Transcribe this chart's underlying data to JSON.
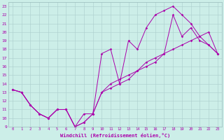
{
  "xlabel": "Windchill (Refroidissement éolien,°C)",
  "background_color": "#cceee8",
  "grid_color": "#aacccc",
  "line_color": "#aa00aa",
  "xlim": [
    -0.5,
    23.5
  ],
  "ylim": [
    9,
    23.5
  ],
  "xticks": [
    0,
    1,
    2,
    3,
    4,
    5,
    6,
    7,
    8,
    9,
    10,
    11,
    12,
    13,
    14,
    15,
    16,
    17,
    18,
    19,
    20,
    21,
    22,
    23
  ],
  "yticks": [
    9,
    10,
    11,
    12,
    13,
    14,
    15,
    16,
    17,
    18,
    19,
    20,
    21,
    22,
    23
  ],
  "line1_x": [
    0,
    1,
    2,
    3,
    4,
    5,
    6,
    7,
    8,
    9,
    10,
    11,
    12,
    13,
    14,
    15,
    16,
    17,
    18,
    19,
    20,
    21,
    22,
    23
  ],
  "line1_y": [
    13.3,
    13.0,
    11.5,
    10.5,
    10.0,
    11.0,
    11.0,
    9.0,
    9.5,
    10.5,
    17.5,
    18.0,
    14.0,
    19.0,
    18.0,
    20.5,
    22.0,
    22.5,
    23.0,
    22.0,
    21.0,
    19.5,
    18.5,
    17.5
  ],
  "line2_x": [
    0,
    1,
    2,
    3,
    4,
    5,
    6,
    7,
    8,
    9,
    10,
    11,
    12,
    13,
    14,
    15,
    16,
    17,
    18,
    19,
    20,
    21,
    22,
    23
  ],
  "line2_y": [
    13.3,
    13.0,
    11.5,
    10.5,
    10.0,
    11.0,
    11.0,
    9.0,
    10.5,
    10.5,
    13.0,
    14.0,
    14.5,
    15.0,
    15.5,
    16.0,
    16.5,
    17.5,
    22.0,
    19.5,
    20.5,
    19.0,
    18.5,
    17.5
  ],
  "line3_x": [
    0,
    1,
    2,
    3,
    4,
    5,
    6,
    7,
    8,
    9,
    10,
    11,
    12,
    13,
    14,
    15,
    16,
    17,
    18,
    19,
    20,
    21,
    22,
    23
  ],
  "line3_y": [
    13.3,
    13.0,
    11.5,
    10.5,
    10.0,
    11.0,
    11.0,
    9.0,
    9.5,
    10.5,
    13.0,
    13.5,
    14.0,
    14.5,
    15.5,
    16.5,
    17.0,
    17.5,
    18.0,
    18.5,
    19.0,
    19.5,
    20.0,
    17.5
  ]
}
